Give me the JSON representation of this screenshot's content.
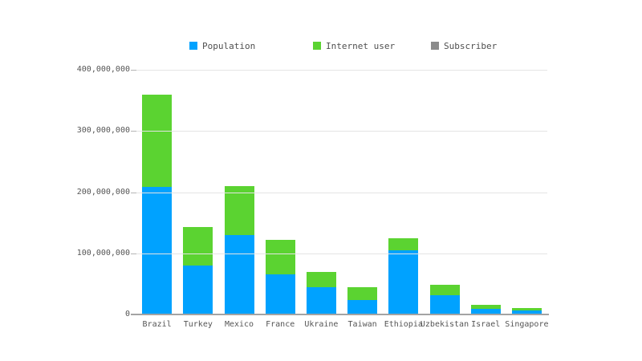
{
  "chart_data": {
    "type": "bar",
    "stacked": true,
    "title": "",
    "xlabel": "",
    "ylabel": "",
    "categories": [
      "Brazil",
      "Turkey",
      "Mexico",
      "France",
      "Ukraine",
      "Taiwan",
      "Ethiopia",
      "Uzbekistan",
      "Israel",
      "Singapore"
    ],
    "series": [
      {
        "name": "Population",
        "color": "#00a2ff",
        "values": [
          209000000,
          80000000,
          130000000,
          65000000,
          44000000,
          23000000,
          105000000,
          32000000,
          9000000,
          6000000
        ]
      },
      {
        "name": "Internet user",
        "color": "#5bd331",
        "values": [
          150000000,
          63000000,
          80000000,
          57000000,
          26000000,
          22000000,
          20000000,
          16000000,
          7000000,
          5000000
        ]
      },
      {
        "name": "Subscriber",
        "color": "#8b8b8b",
        "values": [
          0,
          0,
          0,
          0,
          0,
          0,
          0,
          0,
          0,
          0
        ]
      }
    ],
    "ylim": [
      0,
      400000000
    ],
    "y_ticks": [
      {
        "value": 400000000,
        "label": "400,000,000"
      },
      {
        "value": 300000000,
        "label": "300,000,000"
      },
      {
        "value": 200000000,
        "label": "200,000,000"
      },
      {
        "value": 100000000,
        "label": "100,000,000"
      },
      {
        "value": 0,
        "label": "0"
      }
    ],
    "grid": "horizontal",
    "legend_position": "top"
  },
  "colors": {
    "background": "#ffffff",
    "axis_text": "#555555",
    "legend_text": "#4f4f4f",
    "gridline": "#e4e4e4",
    "axis_line": "#a3a3a3"
  }
}
